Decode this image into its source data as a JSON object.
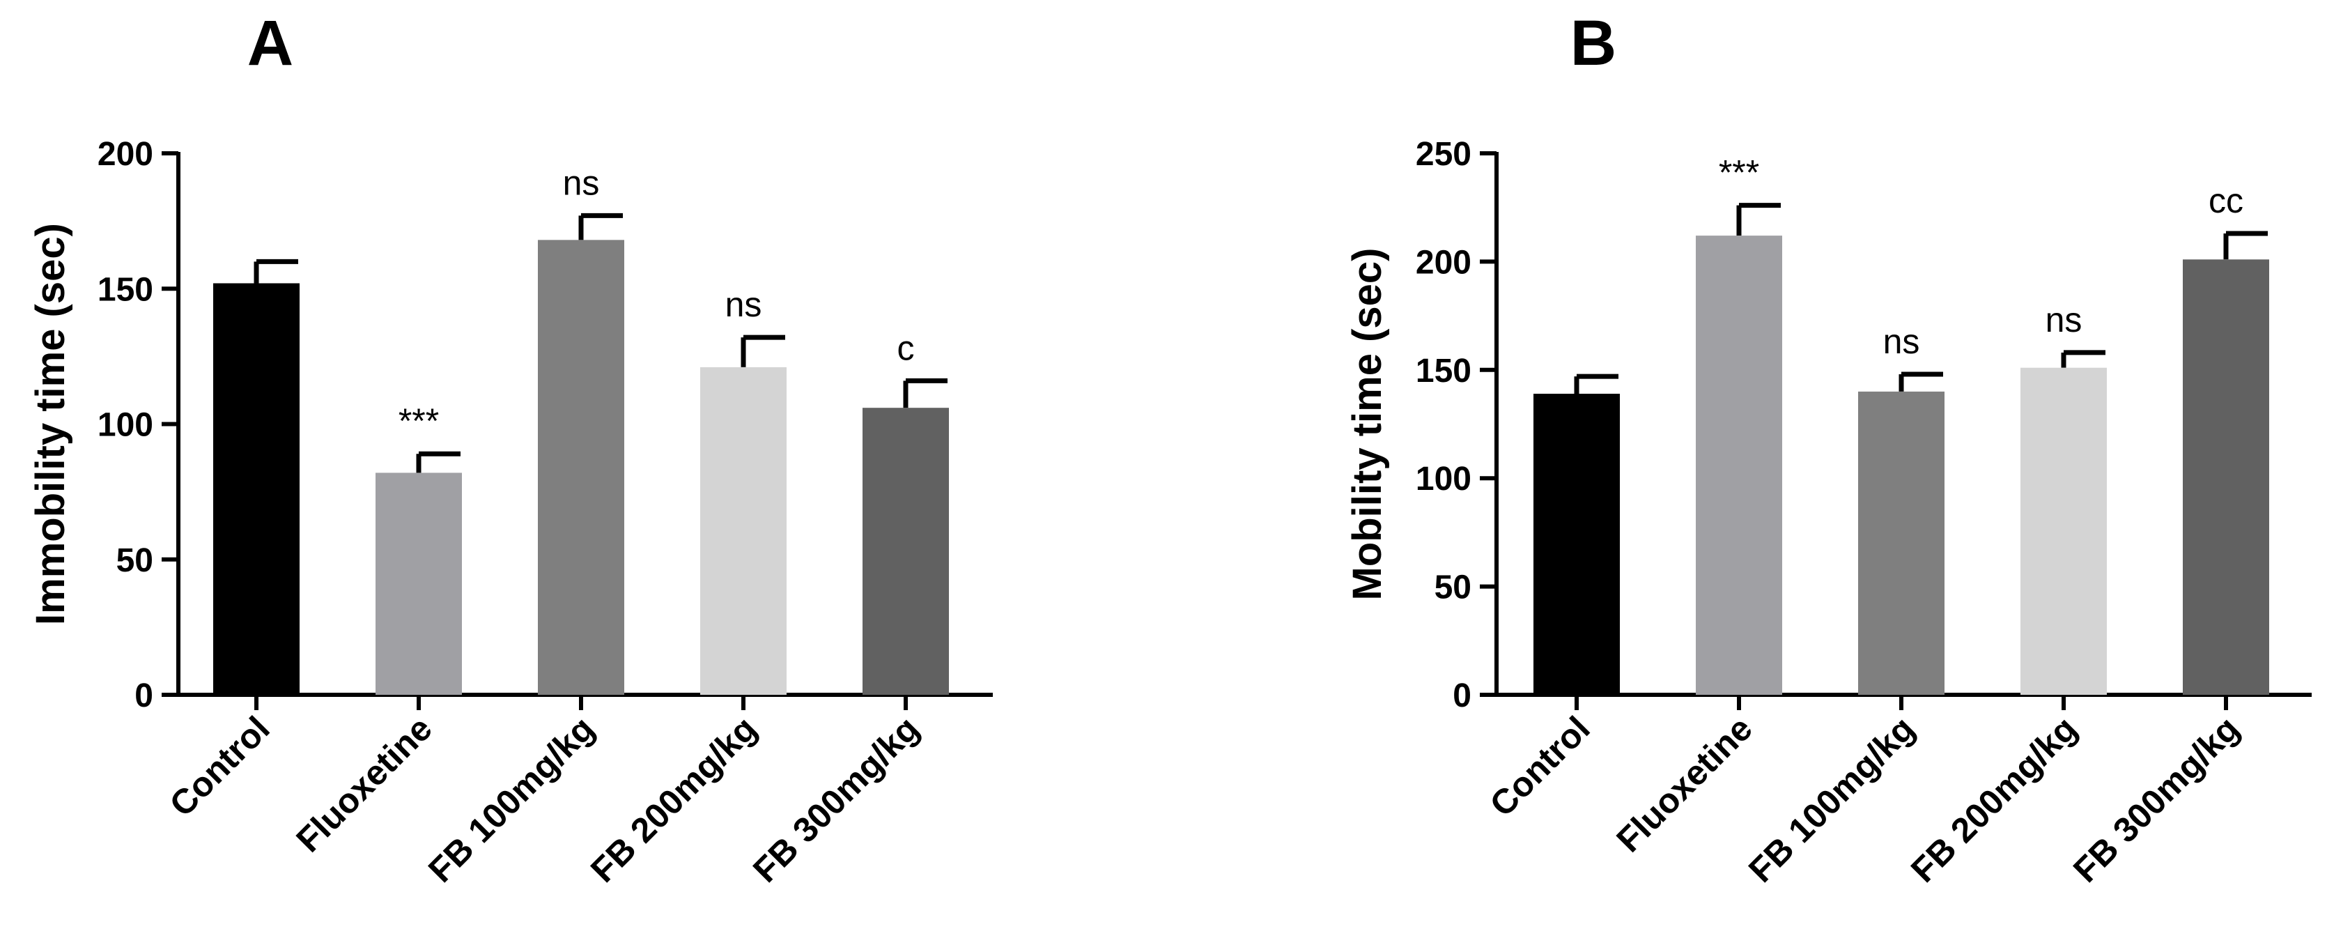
{
  "chart_data": [
    {
      "panel": "A",
      "type": "bar",
      "ylabel": "Immobility time (sec)",
      "xlabel": "",
      "ylim": [
        0,
        200
      ],
      "yticks": [
        0,
        50,
        100,
        150,
        200
      ],
      "categories": [
        "Control",
        "Fluoxetine",
        "FB 100mg/kg",
        "FB 200mg/kg",
        "FB 300mg/kg"
      ],
      "values": [
        152,
        82,
        168,
        121,
        106
      ],
      "errors": [
        8,
        7,
        9,
        11,
        10
      ],
      "colors": [
        "#000000",
        "#a0a0a4",
        "#7f7f7f",
        "#d4d4d4",
        "#616161"
      ],
      "annotations": [
        "",
        "***",
        "ns",
        "ns",
        "c"
      ]
    },
    {
      "panel": "B",
      "type": "bar",
      "ylabel": "Mobility time (sec)",
      "xlabel": "",
      "ylim": [
        0,
        250
      ],
      "yticks": [
        0,
        50,
        100,
        150,
        200,
        250
      ],
      "categories": [
        "Control",
        "Fluoxetine",
        "FB 100mg/kg",
        "FB 200mg/kg",
        "FB 300mg/kg"
      ],
      "values": [
        139,
        212,
        140,
        151,
        201
      ],
      "errors": [
        8,
        14,
        8,
        7,
        12
      ],
      "colors": [
        "#000000",
        "#a0a0a4",
        "#7f7f7f",
        "#d4d4d4",
        "#616161"
      ],
      "annotations": [
        "",
        "***",
        "ns",
        "ns",
        "cc"
      ]
    }
  ]
}
